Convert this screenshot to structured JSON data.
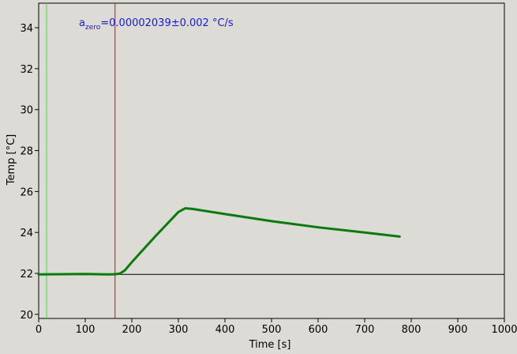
{
  "chart_data": {
    "type": "line",
    "xlabel": "Time [s]",
    "ylabel": "Temp [°C]",
    "xlim": [
      0,
      1000
    ],
    "ylim": [
      19.8,
      35.2
    ],
    "x_ticks": [
      0,
      100,
      200,
      300,
      400,
      500,
      600,
      700,
      800,
      900,
      1000
    ],
    "y_ticks": [
      20,
      22,
      24,
      26,
      28,
      30,
      32,
      34
    ],
    "grid": false,
    "annotation": {
      "base": "a",
      "subscript": "zero",
      "text": "=0.00002039±0.002 °C/s",
      "color": "#1a1ac8"
    },
    "vertical_lines": [
      {
        "x": 17,
        "color": "#44dd44"
      },
      {
        "x": 164,
        "color": "#cc1111"
      }
    ],
    "horizontal_lines": [
      {
        "y": 21.95,
        "x_range": [
          0,
          1000
        ],
        "color": "#000000"
      }
    ],
    "series": [
      {
        "color": "#0a7a0a",
        "x": [
          0,
          50,
          100,
          150,
          165,
          175,
          185,
          200,
          250,
          300,
          315,
          330,
          400,
          500,
          600,
          700,
          775
        ],
        "y": [
          21.95,
          21.96,
          21.97,
          21.95,
          21.96,
          22.0,
          22.15,
          22.55,
          23.8,
          25.0,
          25.18,
          25.15,
          24.9,
          24.55,
          24.25,
          24.0,
          23.8
        ]
      }
    ],
    "colors": {
      "background": "#dcdbd6",
      "axes": "#000000"
    }
  }
}
